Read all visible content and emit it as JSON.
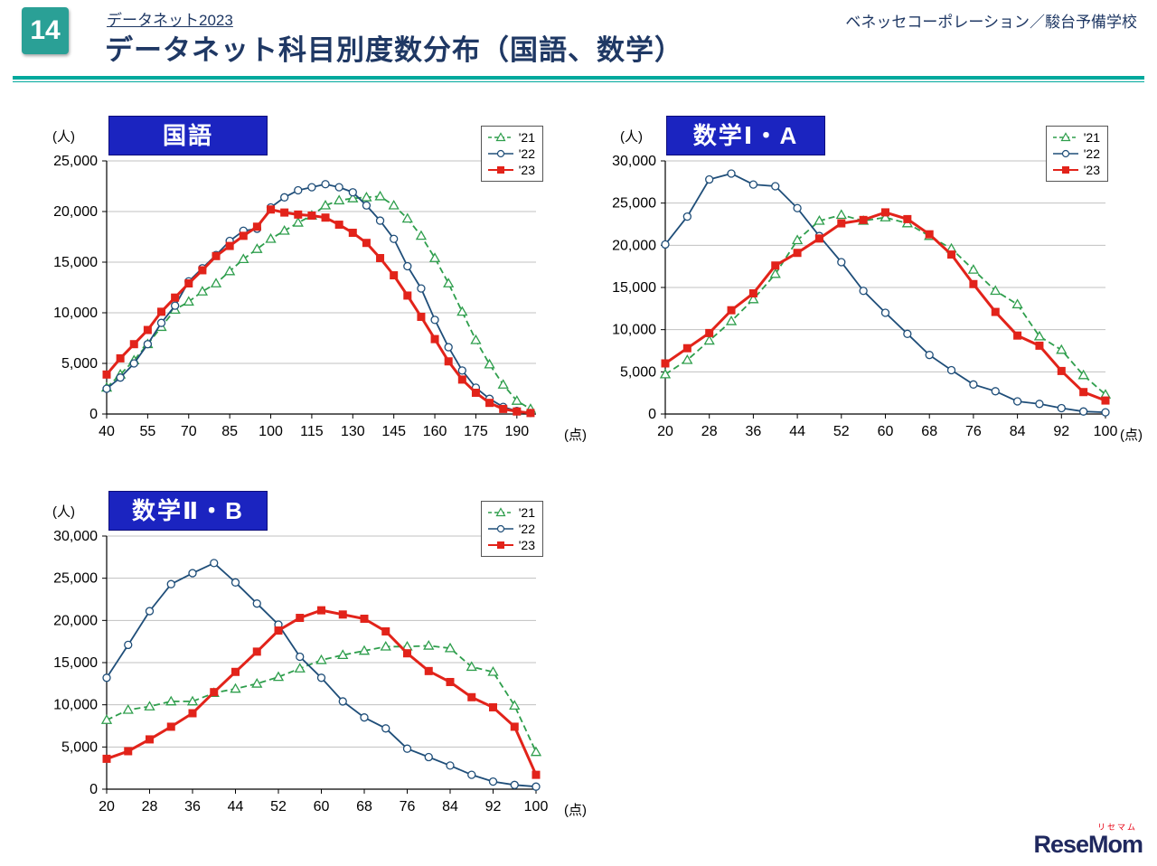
{
  "page": {
    "slide_number": "14",
    "header_link": "データネット2023",
    "title": "データネット科目別度数分布（国語、数学）",
    "source": "ベネッセコーポレーション／駿台予備学校"
  },
  "units": {
    "people": "(人)",
    "points": "(点)"
  },
  "logo": {
    "text": "ReseMom",
    "ruby": "リセマム"
  },
  "colors": {
    "teal_badge": "#2AA096",
    "teal_rule": "#00A99D",
    "navy_text": "#1F3864",
    "title_box_bg": "#1B24C0",
    "grid": "#C0C0C0",
    "series_21_green": "#2E9E4C",
    "series_22_navy": "#1F4E79",
    "series_23_red": "#E2231A"
  },
  "chart_data": [
    {
      "id": "kokugo",
      "title": "国語",
      "type": "line",
      "y_unit": "(人)",
      "x_unit": "(点)",
      "y_max": 25000,
      "y_step": 5000,
      "x_ticks": [
        40,
        55,
        70,
        85,
        100,
        115,
        130,
        145,
        160,
        175,
        190
      ],
      "x_min": 40,
      "x_max": 197,
      "x_start": 40,
      "x_step": 5,
      "series": [
        {
          "name": "'21",
          "color": "#2E9E4C",
          "style": "dashed",
          "marker": "triangle",
          "values": [
            2600,
            3900,
            5300,
            6900,
            8600,
            10300,
            11100,
            12100,
            12900,
            14100,
            15300,
            16300,
            17300,
            18100,
            18900,
            19600,
            20600,
            21100,
            21300,
            21400,
            21500,
            20600,
            19300,
            17600,
            15400,
            12900,
            10100,
            7300,
            4900,
            2900,
            1300,
            500
          ]
        },
        {
          "name": "'22",
          "color": "#1F4E79",
          "style": "solid",
          "marker": "circle",
          "values": [
            2500,
            3600,
            5000,
            6900,
            9000,
            10700,
            13100,
            14400,
            15700,
            17100,
            18100,
            18300,
            20400,
            21400,
            22100,
            22400,
            22700,
            22400,
            21900,
            20600,
            19100,
            17300,
            14600,
            12400,
            9300,
            6600,
            4300,
            2600,
            1500,
            700,
            300,
            100
          ]
        },
        {
          "name": "'23",
          "color": "#E2231A",
          "style": "solid",
          "marker": "square",
          "line_width": 3,
          "values": [
            3900,
            5500,
            6900,
            8300,
            10100,
            11500,
            12900,
            14200,
            15600,
            16600,
            17600,
            18500,
            20200,
            19900,
            19700,
            19600,
            19400,
            18700,
            17900,
            16900,
            15400,
            13700,
            11700,
            9600,
            7400,
            5200,
            3400,
            2100,
            1100,
            500,
            250,
            100
          ]
        }
      ]
    },
    {
      "id": "math-1a",
      "title": "数学Ⅰ・A",
      "type": "line",
      "y_unit": "(人)",
      "x_unit": "(点)",
      "y_max": 30000,
      "y_step": 5000,
      "x_ticks": [
        20,
        28,
        36,
        44,
        52,
        60,
        68,
        76,
        84,
        92,
        100
      ],
      "x_min": 20,
      "x_max": 100,
      "x_start": 20,
      "x_step": 4,
      "series": [
        {
          "name": "'21",
          "color": "#2E9E4C",
          "style": "dashed",
          "marker": "triangle",
          "values": [
            4700,
            6400,
            8700,
            11000,
            13600,
            16600,
            20600,
            22900,
            23600,
            22900,
            23300,
            22600,
            21100,
            19600,
            17100,
            14600,
            13000,
            9200,
            7600,
            4600,
            2300
          ]
        },
        {
          "name": "'22",
          "color": "#1F4E79",
          "style": "solid",
          "marker": "circle",
          "values": [
            20100,
            23400,
            27800,
            28500,
            27200,
            27000,
            24400,
            21100,
            18000,
            14600,
            12000,
            9500,
            7000,
            5200,
            3500,
            2700,
            1500,
            1200,
            700,
            300,
            200
          ]
        },
        {
          "name": "'23",
          "color": "#E2231A",
          "style": "solid",
          "marker": "square",
          "line_width": 3,
          "values": [
            6000,
            7800,
            9600,
            12300,
            14300,
            17600,
            19100,
            20800,
            22600,
            23000,
            23900,
            23100,
            21300,
            18900,
            15400,
            12100,
            9300,
            8100,
            5100,
            2600,
            1600
          ]
        }
      ]
    },
    {
      "id": "math-2b",
      "title": "数学Ⅱ・B",
      "type": "line",
      "y_unit": "(人)",
      "x_unit": "(点)",
      "y_max": 30000,
      "y_step": 5000,
      "x_ticks": [
        20,
        28,
        36,
        44,
        52,
        60,
        68,
        76,
        84,
        92,
        100
      ],
      "x_min": 20,
      "x_max": 100,
      "x_start": 20,
      "x_step": 4,
      "series": [
        {
          "name": "'21",
          "color": "#2E9E4C",
          "style": "dashed",
          "marker": "triangle",
          "values": [
            8200,
            9400,
            9800,
            10400,
            10400,
            11400,
            11900,
            12500,
            13300,
            14300,
            15300,
            15900,
            16400,
            16900,
            16900,
            17000,
            16700,
            14500,
            13900,
            9900,
            4400
          ]
        },
        {
          "name": "'22",
          "color": "#1F4E79",
          "style": "solid",
          "marker": "circle",
          "values": [
            13200,
            17100,
            21100,
            24300,
            25600,
            26800,
            24500,
            22000,
            19500,
            15700,
            13200,
            10400,
            8500,
            7200,
            4800,
            3800,
            2800,
            1700,
            900,
            500,
            300
          ]
        },
        {
          "name": "'23",
          "color": "#E2231A",
          "style": "solid",
          "marker": "square",
          "line_width": 3,
          "values": [
            3600,
            4500,
            5900,
            7400,
            9000,
            11500,
            13900,
            16300,
            18800,
            20300,
            21200,
            20700,
            20200,
            18700,
            16100,
            14000,
            12700,
            10900,
            9700,
            7400,
            1700
          ]
        }
      ]
    }
  ]
}
